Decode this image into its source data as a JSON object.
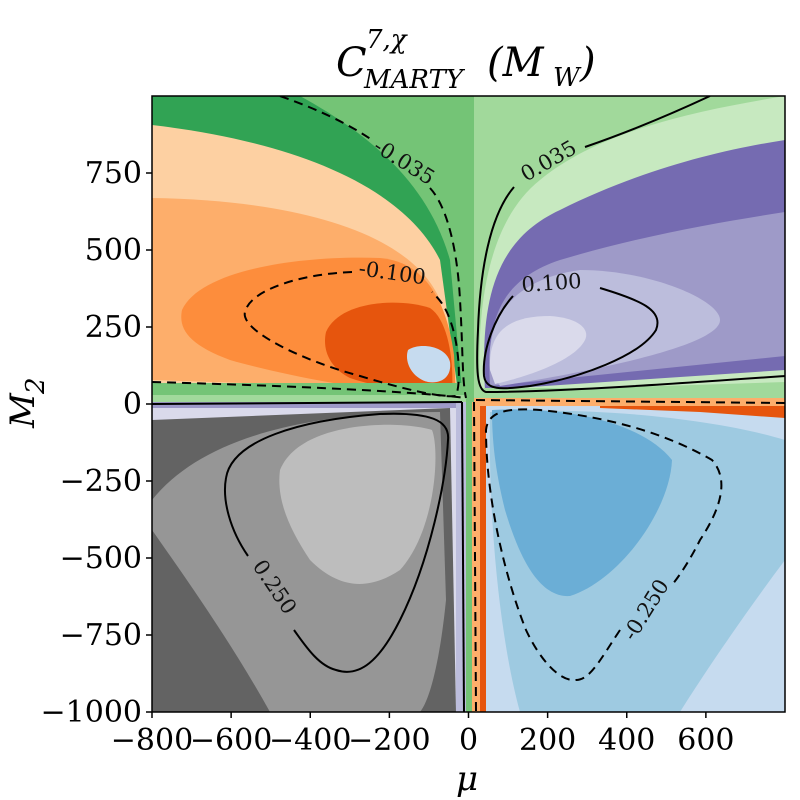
{
  "chart_data": {
    "type": "contourf",
    "title": {
      "base": "C",
      "superscript": "7,χ",
      "subscript": "MARTY",
      "argument": "(M",
      "argument_sub": "W",
      "argument_close": ")"
    },
    "xlabel": "μ",
    "ylabel": "M",
    "ylabel_sub": "2",
    "xlim": [
      -800,
      800
    ],
    "ylim": [
      -1000,
      1000
    ],
    "xticks": [
      -800,
      -600,
      -400,
      -200,
      0,
      200,
      400,
      600
    ],
    "xtick_labels": [
      "−800",
      "−600",
      "−400",
      "−200",
      "0",
      "200",
      "400",
      "600"
    ],
    "yticks": [
      -1000,
      -750,
      -500,
      -250,
      0,
      250,
      500,
      750
    ],
    "ytick_labels": [
      "−1000",
      "−750",
      "−500",
      "−250",
      "0",
      "250",
      "500",
      "750"
    ],
    "colormap": "tab20c",
    "contour_levels": [
      {
        "value": -0.25,
        "label": "-0.250",
        "style": "dashed"
      },
      {
        "value": -0.1,
        "label": "-0.100",
        "style": "dashed"
      },
      {
        "value": -0.035,
        "label": "-0.035",
        "style": "dashed"
      },
      {
        "value": 0.035,
        "label": "0.035",
        "style": "solid"
      },
      {
        "value": 0.1,
        "label": "0.100",
        "style": "solid"
      },
      {
        "value": 0.25,
        "label": "0.250",
        "style": "solid"
      }
    ],
    "regions": [
      {
        "quadrant": "upper-left",
        "sign": "negative",
        "palette": [
          "#31a354",
          "#74c476",
          "#fdd0a2",
          "#fdae6b",
          "#fd8d3c",
          "#e6550d",
          "#c6dbef"
        ]
      },
      {
        "quadrant": "upper-right",
        "sign": "positive",
        "palette": [
          "#a1d99b",
          "#c7e9c0",
          "#756bb1",
          "#9e9ac8",
          "#bcbddc",
          "#dadaeb"
        ]
      },
      {
        "quadrant": "lower-left",
        "sign": "positive",
        "palette": [
          "#dadaeb",
          "#636363",
          "#969696",
          "#bdbdbd"
        ]
      },
      {
        "quadrant": "lower-right",
        "sign": "negative",
        "palette": [
          "#c6dbef",
          "#9ecae1",
          "#6baed6",
          "#e6550d"
        ]
      }
    ],
    "grid": false,
    "legend": "none"
  }
}
